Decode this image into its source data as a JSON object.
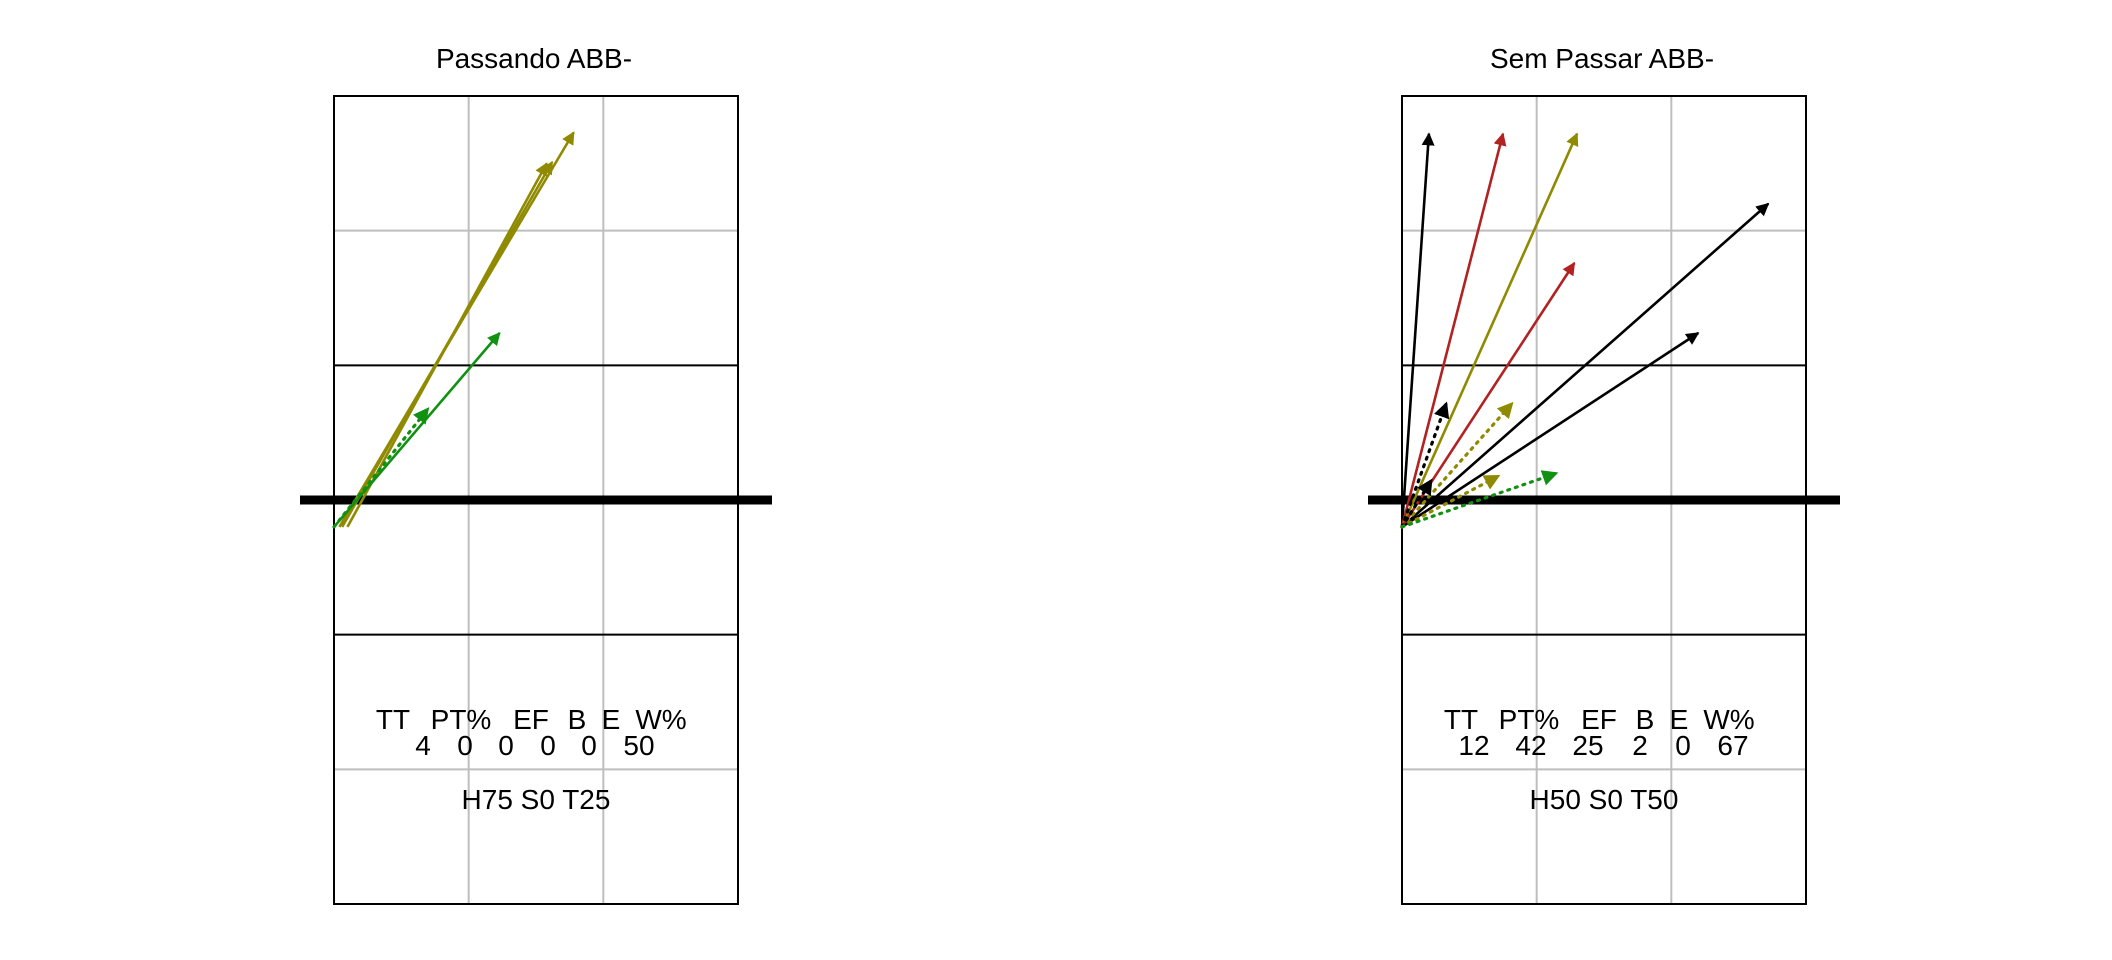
{
  "chart_data": [
    {
      "type": "arrow-diagram",
      "title": "Passando ABB-",
      "stats": {
        "headers": [
          "TT",
          "PT%",
          "EF",
          "B",
          "E",
          "W%"
        ],
        "values": [
          "4",
          "0",
          "0",
          "0",
          "0",
          "50"
        ]
      },
      "summary": "H75 S0 T25",
      "arrows": [
        {
          "x1": 0.04,
          "y1": 3.2,
          "x2": 1.78,
          "y2": 0.27,
          "style": "solid",
          "color": "olive"
        },
        {
          "x1": 0.1,
          "y1": 3.2,
          "x2": 1.58,
          "y2": 0.5,
          "style": "solid",
          "color": "olive"
        },
        {
          "x1": 0.06,
          "y1": 3.2,
          "x2": 1.62,
          "y2": 0.49,
          "style": "solid",
          "color": "olive"
        },
        {
          "x1": 0.0,
          "y1": 3.2,
          "x2": 1.23,
          "y2": 1.76,
          "style": "solid",
          "color": "green"
        },
        {
          "x1": 0.0,
          "y1": 3.2,
          "x2": 0.7,
          "y2": 2.32,
          "style": "dotted",
          "color": "green"
        }
      ]
    },
    {
      "type": "arrow-diagram",
      "title": "Sem Passar ABB-",
      "stats": {
        "headers": [
          "TT",
          "PT%",
          "EF",
          "B",
          "E",
          "W%"
        ],
        "values": [
          "12",
          "42",
          "25",
          "2",
          "0",
          "67"
        ]
      },
      "summary": "H50 S0 T50",
      "arrows": [
        {
          "x1": 0.0,
          "y1": 3.2,
          "x2": 0.2,
          "y2": 0.28,
          "style": "solid",
          "color": "black"
        },
        {
          "x1": 0.0,
          "y1": 3.2,
          "x2": 0.75,
          "y2": 0.28,
          "style": "solid",
          "color": "firebrick"
        },
        {
          "x1": 0.0,
          "y1": 3.2,
          "x2": 1.3,
          "y2": 0.28,
          "style": "solid",
          "color": "olive"
        },
        {
          "x1": 0.0,
          "y1": 3.2,
          "x2": 2.72,
          "y2": 0.8,
          "style": "solid",
          "color": "black"
        },
        {
          "x1": 0.0,
          "y1": 3.2,
          "x2": 1.28,
          "y2": 1.24,
          "style": "solid",
          "color": "firebrick"
        },
        {
          "x1": 0.0,
          "y1": 3.2,
          "x2": 2.2,
          "y2": 1.76,
          "style": "solid",
          "color": "black"
        },
        {
          "x1": 0.0,
          "y1": 3.2,
          "x2": 0.33,
          "y2": 2.28,
          "style": "dotted",
          "color": "black"
        },
        {
          "x1": 0.0,
          "y1": 3.2,
          "x2": 0.82,
          "y2": 2.28,
          "style": "dotted",
          "color": "olive"
        },
        {
          "x1": 0.0,
          "y1": 3.2,
          "x2": 0.22,
          "y2": 2.85,
          "style": "dotted",
          "color": "black"
        },
        {
          "x1": 0.0,
          "y1": 3.2,
          "x2": 0.72,
          "y2": 2.82,
          "style": "dotted",
          "color": "olive"
        },
        {
          "x1": 0.0,
          "y1": 3.2,
          "x2": 1.15,
          "y2": 2.8,
          "style": "dotted",
          "color": "green"
        }
      ]
    }
  ],
  "court": {
    "width_units": 3,
    "height_units": 6,
    "net_y": 3,
    "colors": {
      "olive": "#8f8a00",
      "green": "#119011",
      "firebrick": "#b22222",
      "black": "#000000",
      "grid": "#bebebe",
      "outline": "#000000"
    }
  }
}
